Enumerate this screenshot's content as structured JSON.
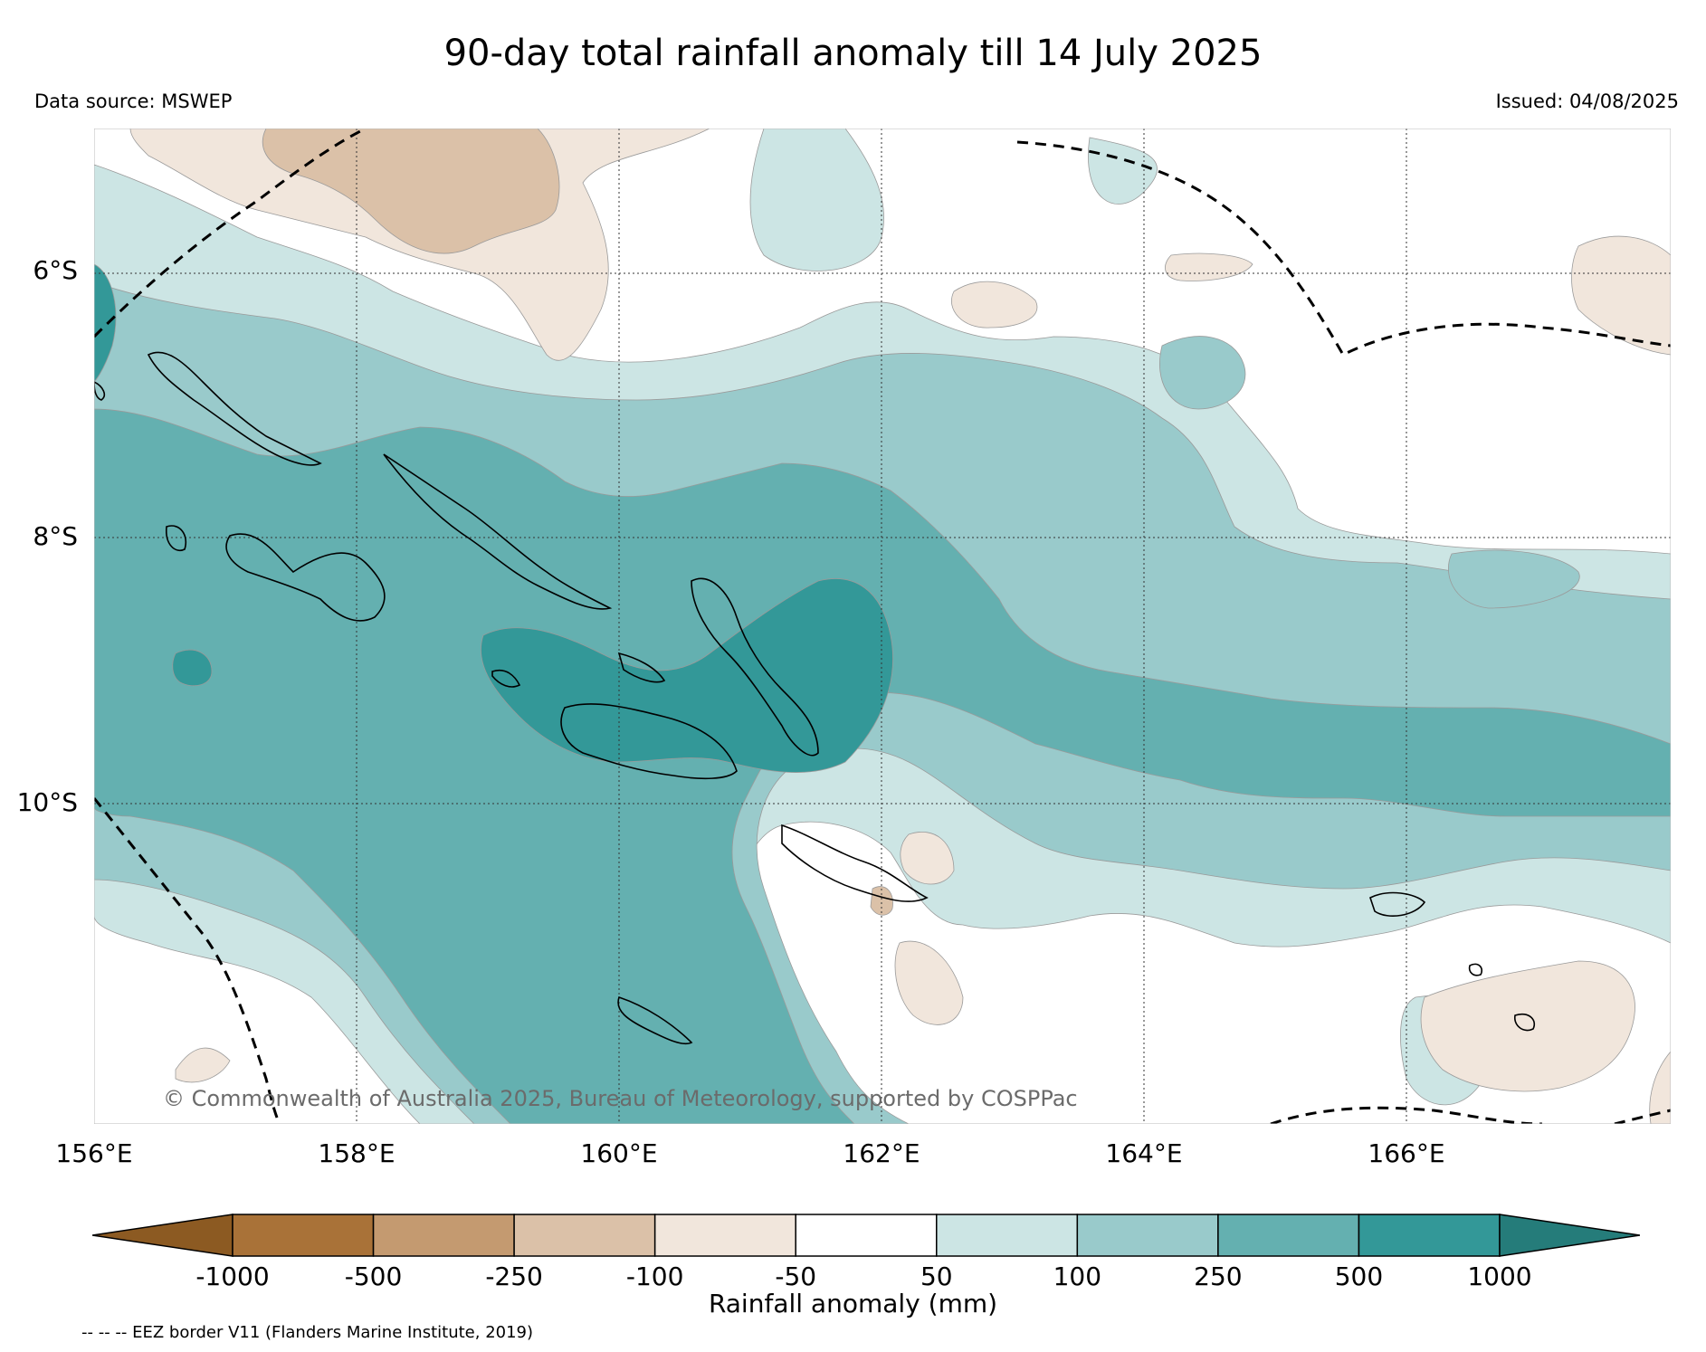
{
  "title": "90-day total rainfall anomaly till 14 July 2025",
  "data_source": "Data source: MSWEP",
  "issued": "Issued: 04/08/2025",
  "map": {
    "lat_labels": [
      "6°S",
      "8°S",
      "10°S"
    ],
    "lon_labels": [
      "156°E",
      "158°E",
      "160°E",
      "162°E",
      "164°E",
      "166°E"
    ],
    "copyright": "© Commonwealth of Australia 2025, Bureau of Meteorology, supported by COSPPac"
  },
  "legend": {
    "label": "Rainfall anomaly (mm)",
    "ticks": [
      "-1000",
      "-500",
      "-250",
      "-100",
      "-50",
      "50",
      "100",
      "250",
      "500",
      "1000"
    ],
    "colors": [
      "#8c5a22",
      "#a97238",
      "#c49a70",
      "#dbc1a8",
      "#f1e6dc",
      "#ffffff",
      "#cce5e4",
      "#99cacb",
      "#64b0b0",
      "#339898",
      "#257c7a"
    ],
    "eez_note": "-- -- -- EEZ border V11 (Flanders Marine Institute, 2019)"
  }
}
